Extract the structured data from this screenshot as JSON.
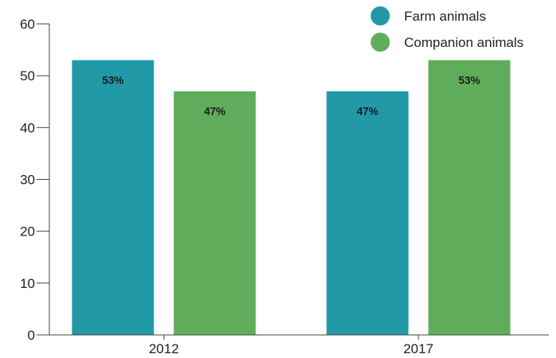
{
  "colors": {
    "farm": "#2199a6",
    "companion": "#5fad5a",
    "axis": "#444444"
  },
  "chart_data": {
    "type": "bar",
    "categories": [
      "2012",
      "2017"
    ],
    "series": [
      {
        "name": "Farm animals",
        "color": "#2199a6",
        "values": [
          53,
          47
        ],
        "labels": [
          "53%",
          "47%"
        ]
      },
      {
        "name": "Companion animals",
        "color": "#5fad5a",
        "values": [
          47,
          53
        ],
        "labels": [
          "47%",
          "53%"
        ]
      }
    ],
    "ylim": [
      0,
      60
    ],
    "yticks": [
      0,
      10,
      20,
      30,
      40,
      50,
      60
    ],
    "grid": false,
    "legend_position": "top-right"
  }
}
